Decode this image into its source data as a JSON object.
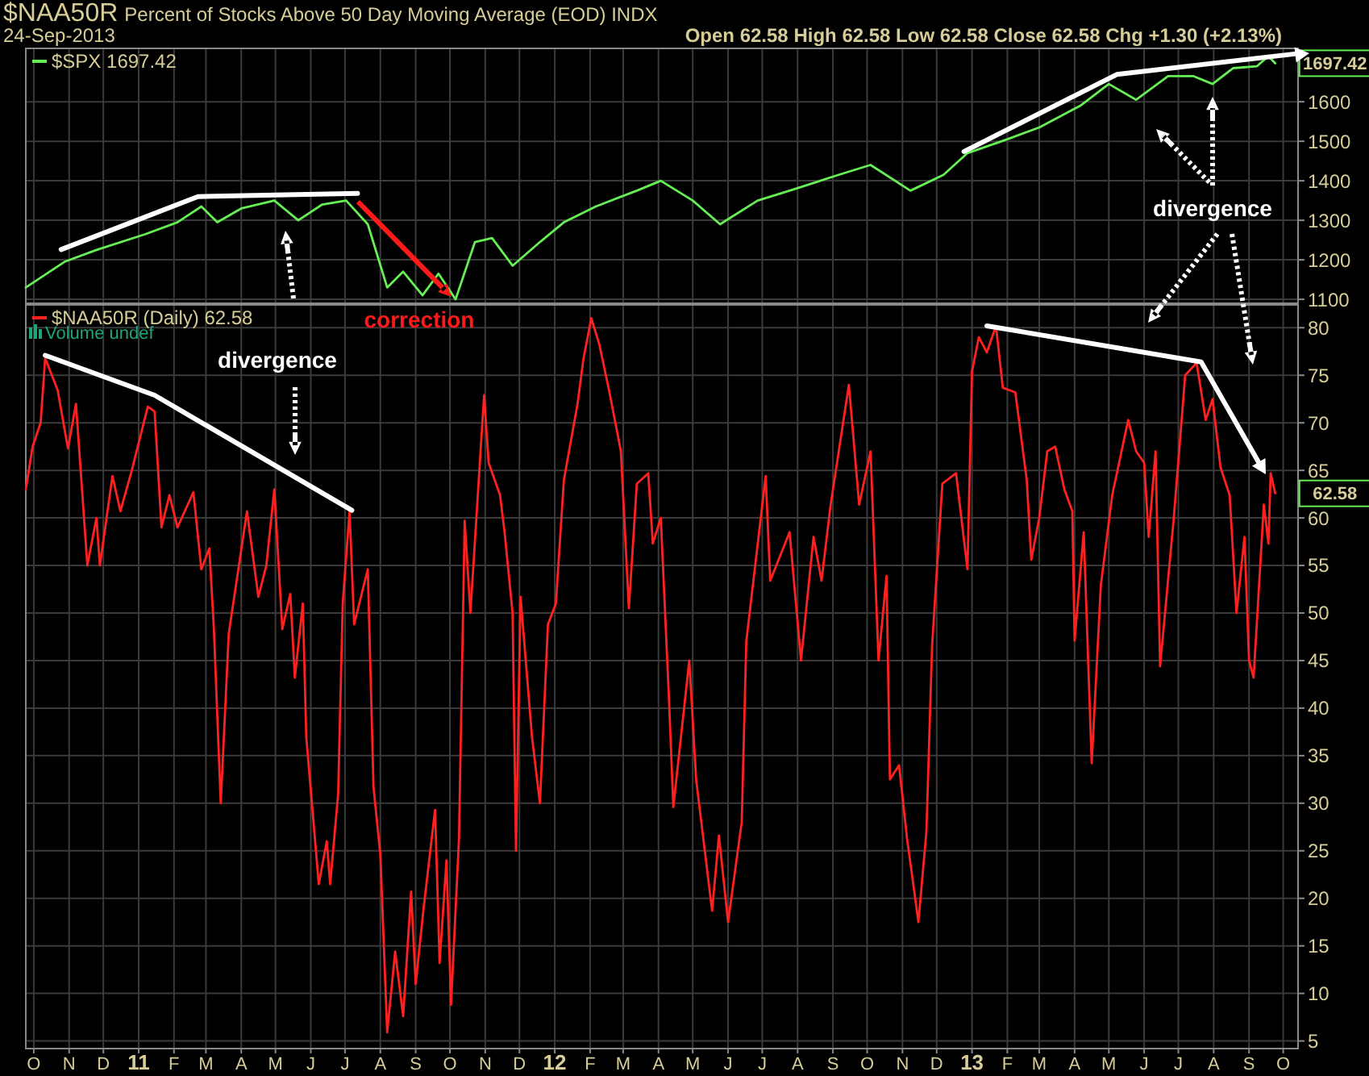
{
  "chart_data": [
    {
      "type": "line",
      "title": "$NAA50R",
      "subtitle": "Percent of Stocks Above 50 Day Moving Average (EOD)  INDX",
      "annotations": [
        "24-Sep-2013",
        "Open 62.58  High 62.58  Low 62.58  Close 62.58  Chg +1.30 (+2.13%)",
        {
          "text": "1697.42",
          "x": "2013-09-24",
          "y": 1697.42
        },
        "divergence"
      ],
      "x": [
        "2010-09-24",
        "2010-10-28",
        "2010-11-25",
        "2011-01-07",
        "2011-02-04",
        "2011-02-25",
        "2011-03-11",
        "2011-04-01",
        "2011-04-30",
        "2011-05-21",
        "2011-06-11",
        "2011-07-02",
        "2011-07-21",
        "2011-08-07",
        "2011-08-21",
        "2011-09-07",
        "2011-09-21",
        "2011-10-06",
        "2011-10-23",
        "2011-11-07",
        "2011-11-25",
        "2011-12-19",
        "2012-01-09",
        "2012-02-06",
        "2012-03-13",
        "2012-04-03",
        "2012-05-01",
        "2012-05-25",
        "2012-06-27",
        "2012-07-25",
        "2012-09-06",
        "2012-10-04",
        "2012-11-08",
        "2012-12-07",
        "2012-12-28",
        "2013-02-01",
        "2013-03-01",
        "2013-04-06",
        "2013-05-01",
        "2013-05-25",
        "2013-06-22",
        "2013-07-14",
        "2013-07-31",
        "2013-08-18",
        "2013-09-08",
        "2013-09-18",
        "2013-09-24"
      ],
      "series": [
        {
          "name": "$SPX 1697.42",
          "color": "#66ee55",
          "values": [
            1130,
            1195,
            1225,
            1265,
            1295,
            1335,
            1295,
            1330,
            1350,
            1300,
            1340,
            1350,
            1290,
            1130,
            1170,
            1110,
            1165,
            1100,
            1245,
            1255,
            1185,
            1245,
            1295,
            1335,
            1375,
            1400,
            1350,
            1290,
            1350,
            1375,
            1415,
            1440,
            1375,
            1415,
            1470,
            1505,
            1535,
            1590,
            1645,
            1605,
            1665,
            1665,
            1645,
            1685,
            1690,
            1715,
            1697.42
          ]
        },
        {
          "type": "line",
          "color": "#ffffff",
          "x": [
            "2010-10-25",
            "2011-02-22",
            "2011-07-12",
            "2012-01-01",
            "2012-12-25",
            "2013-05-08",
            "2013-10-14"
          ],
          "values": [
            1226,
            1360,
            1368,
            null,
            1474,
            1669,
            1722
          ]
        }
      ],
      "xlim": [
        "2010-09-24",
        "2013-10-14"
      ],
      "xticks": [
        {
          "value": "2010-10-01",
          "label": null
        },
        {
          "value": "2010-11-01",
          "label": null
        },
        {
          "value": "2010-12-01",
          "label": null
        },
        {
          "value": "2011-01-01",
          "label": null
        },
        {
          "value": "2011-02-01",
          "label": null
        },
        {
          "value": "2011-03-01",
          "label": null
        },
        {
          "value": "2011-04-01",
          "label": null
        },
        {
          "value": "2011-05-01",
          "label": null
        },
        {
          "value": "2011-06-01",
          "label": null
        },
        {
          "value": "2011-07-01",
          "label": null
        },
        {
          "value": "2011-08-01",
          "label": null
        },
        {
          "value": "2011-09-01",
          "label": null
        },
        {
          "value": "2011-10-01",
          "label": null
        },
        {
          "value": "2011-11-01",
          "label": null
        },
        {
          "value": "2011-12-01",
          "label": null
        },
        {
          "value": "2012-01-01",
          "label": null
        },
        {
          "value": "2012-02-01",
          "label": null
        },
        {
          "value": "2012-03-01",
          "label": null
        },
        {
          "value": "2012-04-01",
          "label": null
        },
        {
          "value": "2012-05-01",
          "label": null
        },
        {
          "value": "2012-06-01",
          "label": null
        },
        {
          "value": "2012-07-01",
          "label": null
        },
        {
          "value": "2012-08-01",
          "label": null
        },
        {
          "value": "2012-09-01",
          "label": null
        },
        {
          "value": "2012-10-01",
          "label": null
        },
        {
          "value": "2012-11-01",
          "label": null
        },
        {
          "value": "2012-12-01",
          "label": null
        },
        {
          "value": "2013-01-01",
          "label": null
        },
        {
          "value": "2013-02-01",
          "label": null
        },
        {
          "value": "2013-03-01",
          "label": null
        },
        {
          "value": "2013-04-01",
          "label": null
        },
        {
          "value": "2013-05-01",
          "label": null
        },
        {
          "value": "2013-06-01",
          "label": null
        },
        {
          "value": "2013-07-01",
          "label": null
        },
        {
          "value": "2013-08-01",
          "label": null
        },
        {
          "value": "2013-09-01",
          "label": null
        },
        {
          "value": "2013-10-01",
          "label": null
        }
      ],
      "ylim": [
        1090,
        1735
      ],
      "yticks": [
        1100,
        1200,
        1300,
        1400,
        1500,
        1600
      ],
      "grid": true,
      "legend": "top left",
      "tick_labels": "y"
    },
    {
      "type": "line",
      "annotations": [
        "Volume undef",
        "correction",
        "divergence",
        {
          "text": "62.58",
          "x": "2013-09-24",
          "y": 62.58
        }
      ],
      "x": [
        "2010-09-24",
        "2010-09-30",
        "2010-10-07",
        "2010-10-11",
        "2010-10-22",
        "2010-10-31",
        "2010-11-07",
        "2010-11-17",
        "2010-11-25",
        "2010-11-28",
        "2010-12-09",
        "2010-12-16",
        "2010-12-26",
        "2011-01-09",
        "2011-01-15",
        "2011-01-21",
        "2011-01-28",
        "2011-02-04",
        "2011-02-18",
        "2011-02-25",
        "2011-03-04",
        "2011-03-08",
        "2011-03-14",
        "2011-03-21",
        "2011-04-06",
        "2011-04-16",
        "2011-04-23",
        "2011-04-30",
        "2011-05-07",
        "2011-05-14",
        "2011-05-18",
        "2011-05-25",
        "2011-05-28",
        "2011-06-08",
        "2011-06-15",
        "2011-06-18",
        "2011-06-25",
        "2011-06-29",
        "2011-07-05",
        "2011-07-09",
        "2011-07-21",
        "2011-07-26",
        "2011-08-01",
        "2011-08-07",
        "2011-08-14",
        "2011-08-21",
        "2011-08-28",
        "2011-09-01",
        "2011-09-08",
        "2011-09-18",
        "2011-09-22",
        "2011-09-28",
        "2011-10-02",
        "2011-10-09",
        "2011-10-14",
        "2011-10-19",
        "2011-10-31",
        "2011-11-04",
        "2011-11-14",
        "2011-11-18",
        "2011-11-25",
        "2011-11-28",
        "2011-12-02",
        "2011-12-12",
        "2011-12-19",
        "2011-12-26",
        "2012-01-02",
        "2012-01-09",
        "2012-01-21",
        "2012-01-26",
        "2012-02-02",
        "2012-02-09",
        "2012-02-18",
        "2012-02-28",
        "2012-03-06",
        "2012-03-13",
        "2012-03-23",
        "2012-03-27",
        "2012-04-03",
        "2012-04-10",
        "2012-04-14",
        "2012-04-28",
        "2012-05-04",
        "2012-05-18",
        "2012-05-24",
        "2012-06-01",
        "2012-06-13",
        "2012-06-17",
        "2012-07-04",
        "2012-07-08",
        "2012-07-25",
        "2012-08-04",
        "2012-08-15",
        "2012-08-22",
        "2012-08-30",
        "2012-09-15",
        "2012-09-24",
        "2012-10-04",
        "2012-10-11",
        "2012-10-18",
        "2012-10-21",
        "2012-10-29",
        "2012-11-05",
        "2012-11-15",
        "2012-11-22",
        "2012-11-27",
        "2012-12-06",
        "2012-12-18",
        "2012-12-28",
        "2013-01-01",
        "2013-01-07",
        "2013-01-14",
        "2013-01-22",
        "2013-01-28",
        "2013-02-08",
        "2013-02-18",
        "2013-02-22",
        "2013-03-01",
        "2013-03-08",
        "2013-03-15",
        "2013-03-23",
        "2013-03-30",
        "2013-04-01",
        "2013-04-09",
        "2013-04-16",
        "2013-04-24",
        "2013-05-04",
        "2013-05-18",
        "2013-05-25",
        "2013-06-01",
        "2013-06-05",
        "2013-06-11",
        "2013-06-15",
        "2013-06-27",
        "2013-07-07",
        "2013-07-17",
        "2013-07-25",
        "2013-07-31",
        "2013-08-07",
        "2013-08-15",
        "2013-08-21",
        "2013-08-28",
        "2013-09-01",
        "2013-09-05",
        "2013-09-14",
        "2013-09-18",
        "2013-09-20",
        "2013-09-24"
      ],
      "series": [
        {
          "name": "$NAA50R (Daily) 62.58",
          "color": "#ff2020",
          "values": [
            63,
            67.5,
            70,
            76.8,
            73.4,
            67.3,
            72,
            55,
            60,
            55,
            64.4,
            60.7,
            65,
            71.7,
            71.2,
            59,
            62.4,
            59,
            62.7,
            54.6,
            56.8,
            48.3,
            30,
            47.8,
            60.7,
            51.7,
            55,
            63,
            48.3,
            52,
            43.2,
            51,
            37,
            21.5,
            26,
            21.5,
            31,
            51,
            60.7,
            48.8,
            54.6,
            31.7,
            24.6,
            5.9,
            14.4,
            7.6,
            20.7,
            11,
            19,
            29.3,
            13.2,
            24,
            8.8,
            26.3,
            59.7,
            50,
            72.9,
            65.8,
            62.4,
            58.5,
            50,
            25,
            51.7,
            37,
            30,
            48.8,
            51,
            64,
            72,
            76.6,
            81,
            78.3,
            73.2,
            67,
            50.5,
            63.6,
            64.7,
            57.3,
            60,
            41.5,
            29.6,
            45,
            32.5,
            18.7,
            26.6,
            17.5,
            28,
            47,
            64.4,
            53.4,
            58.5,
            45,
            58,
            53.4,
            61.4,
            74,
            61.4,
            67,
            45,
            53.9,
            32.5,
            34,
            26.3,
            17.5,
            27,
            46.6,
            63.6,
            64.7,
            54.6,
            75.4,
            79,
            77.4,
            80.2,
            73.7,
            73.2,
            64,
            55.6,
            60,
            67,
            67.5,
            63,
            60.7,
            47.1,
            58.5,
            34.2,
            52.9,
            62.4,
            70.3,
            67,
            65.8,
            58,
            67,
            44.4,
            60,
            75,
            76.3,
            70.3,
            72.5,
            65.3,
            62.4,
            50,
            58,
            45,
            43.2,
            61.4,
            57.3,
            64.7,
            62.58
          ]
        },
        {
          "type": "line",
          "color": "#ffffff",
          "x": [
            "2010-10-11",
            "2011-01-15",
            "2011-07-07",
            "2012-01-01",
            "2013-01-14",
            "2013-07-21",
            "2013-09-12"
          ],
          "values": [
            77.1,
            72.9,
            60.8,
            null,
            80.2,
            76.4,
            65.3
          ]
        }
      ],
      "xlim": [
        "2010-09-24",
        "2013-10-14"
      ],
      "xticks": [
        {
          "value": "2010-10-01",
          "label": "O"
        },
        {
          "value": "2010-11-01",
          "label": "N"
        },
        {
          "value": "2010-12-01",
          "label": "D"
        },
        {
          "value": "2011-01-01",
          "label": "11"
        },
        {
          "value": "2011-02-01",
          "label": "F"
        },
        {
          "value": "2011-03-01",
          "label": "M"
        },
        {
          "value": "2011-04-01",
          "label": "A"
        },
        {
          "value": "2011-05-01",
          "label": "M"
        },
        {
          "value": "2011-06-01",
          "label": "J"
        },
        {
          "value": "2011-07-01",
          "label": "J"
        },
        {
          "value": "2011-08-01",
          "label": "A"
        },
        {
          "value": "2011-09-01",
          "label": "S"
        },
        {
          "value": "2011-10-01",
          "label": "O"
        },
        {
          "value": "2011-11-01",
          "label": "N"
        },
        {
          "value": "2011-12-01",
          "label": "D"
        },
        {
          "value": "2012-01-01",
          "label": "12"
        },
        {
          "value": "2012-02-01",
          "label": "F"
        },
        {
          "value": "2012-03-01",
          "label": "M"
        },
        {
          "value": "2012-04-01",
          "label": "A"
        },
        {
          "value": "2012-05-01",
          "label": "M"
        },
        {
          "value": "2012-06-01",
          "label": "J"
        },
        {
          "value": "2012-07-01",
          "label": "J"
        },
        {
          "value": "2012-08-01",
          "label": "A"
        },
        {
          "value": "2012-09-01",
          "label": "S"
        },
        {
          "value": "2012-10-01",
          "label": "O"
        },
        {
          "value": "2012-11-01",
          "label": "N"
        },
        {
          "value": "2012-12-01",
          "label": "D"
        },
        {
          "value": "2013-01-01",
          "label": "13"
        },
        {
          "value": "2013-02-01",
          "label": "F"
        },
        {
          "value": "2013-03-01",
          "label": "M"
        },
        {
          "value": "2013-04-01",
          "label": "A"
        },
        {
          "value": "2013-05-01",
          "label": "M"
        },
        {
          "value": "2013-06-01",
          "label": "J"
        },
        {
          "value": "2013-07-01",
          "label": "J"
        },
        {
          "value": "2013-08-01",
          "label": "A"
        },
        {
          "value": "2013-09-01",
          "label": "S"
        },
        {
          "value": "2013-10-01",
          "label": "O"
        }
      ],
      "ylim": [
        4.2,
        82.4
      ],
      "yticks": [
        5,
        10,
        15,
        20,
        25,
        30,
        35,
        40,
        45,
        50,
        55,
        60,
        65,
        70,
        75,
        80
      ],
      "grid": true,
      "legend": "top left"
    }
  ]
}
